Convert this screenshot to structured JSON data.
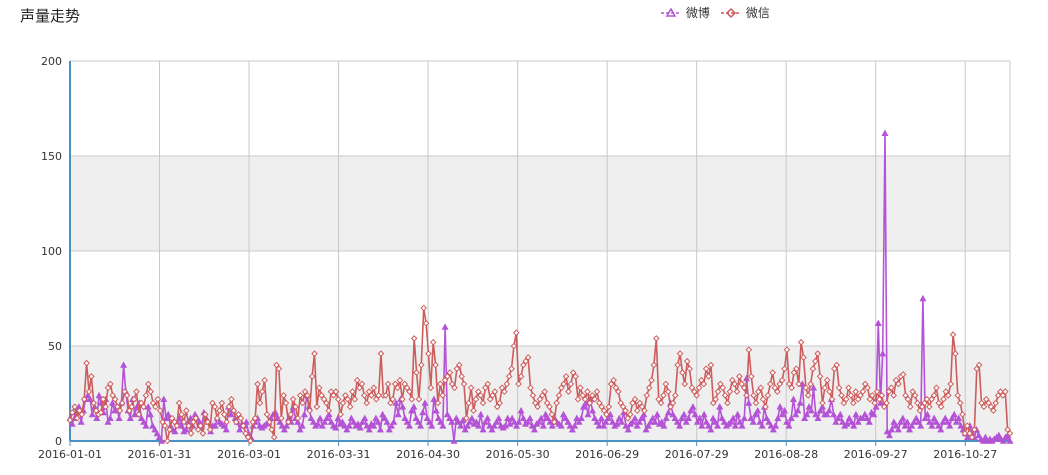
{
  "page": {
    "title": "声量走势"
  },
  "colors": {
    "weibo": "#b453d6",
    "weixin": "#cd5c5c",
    "axis": "#4a90c4",
    "band": "#efefef",
    "grid": "#c8c8c8"
  },
  "chart_data": {
    "type": "line",
    "title": "声量走势",
    "xlabel": "",
    "ylabel": "",
    "ylim": [
      0,
      200
    ],
    "yticks": [
      0,
      50,
      100,
      150,
      200
    ],
    "x_start": "2016-01-01",
    "x_end": "2016-11-11",
    "xticks": [
      "2016-01-01",
      "2016-01-31",
      "2016-03-01",
      "2016-03-31",
      "2016-04-30",
      "2016-05-30",
      "2016-06-29",
      "2016-07-29",
      "2016-08-28",
      "2016-09-27",
      "2016-10-27"
    ],
    "legend_position": "top-right",
    "grid": true,
    "series": [
      {
        "name": "微博",
        "marker": "triangle",
        "color": "#b453d6",
        "values": [
          12,
          9,
          12,
          15,
          18,
          10,
          16,
          22,
          24,
          22,
          14,
          18,
          12,
          24,
          20,
          15,
          22,
          10,
          12,
          20,
          16,
          18,
          12,
          20,
          40,
          26,
          16,
          12,
          22,
          14,
          18,
          20,
          12,
          10,
          8,
          18,
          14,
          8,
          6,
          4,
          2,
          0,
          22,
          12,
          14,
          8,
          6,
          5,
          10,
          12,
          8,
          5,
          6,
          10,
          12,
          8,
          14,
          12,
          10,
          8,
          15,
          12,
          10,
          5,
          8,
          8,
          12,
          10,
          9,
          8,
          6,
          18,
          14,
          16,
          12,
          10,
          6,
          9,
          8,
          10,
          4,
          2,
          8,
          10,
          12,
          8,
          7,
          8,
          9,
          10,
          12,
          14,
          15,
          12,
          10,
          8,
          6,
          8,
          12,
          10,
          18,
          12,
          10,
          6,
          8,
          14,
          24,
          18,
          12,
          10,
          8,
          9,
          12,
          8,
          10,
          12,
          14,
          10,
          8,
          7,
          12,
          9,
          10,
          8,
          6,
          8,
          12,
          10,
          8,
          9,
          7,
          10,
          12,
          8,
          6,
          9,
          8,
          12,
          10,
          6,
          14,
          12,
          10,
          6,
          8,
          10,
          20,
          14,
          22,
          18,
          12,
          10,
          8,
          16,
          18,
          12,
          10,
          8,
          15,
          20,
          12,
          10,
          8,
          22,
          16,
          12,
          10,
          8,
          60,
          14,
          12,
          10,
          0,
          12,
          10,
          8,
          11,
          6,
          8,
          10,
          12,
          9,
          10,
          8,
          14,
          6,
          10,
          12,
          8,
          6,
          8,
          10,
          12,
          8,
          7,
          8,
          12,
          9,
          12,
          10,
          8,
          10,
          16,
          12,
          9,
          10,
          12,
          8,
          6,
          9,
          10,
          12,
          8,
          14,
          12,
          10,
          8,
          12,
          10,
          9,
          8,
          14,
          12,
          10,
          8,
          6,
          8,
          12,
          10,
          12,
          18,
          20,
          14,
          22,
          16,
          12,
          10,
          8,
          12,
          8,
          10,
          12,
          14,
          10,
          8,
          9,
          12,
          10,
          15,
          8,
          6,
          9,
          10,
          12,
          8,
          10,
          12,
          14,
          6,
          8,
          10,
          12,
          10,
          14,
          9,
          10,
          8,
          12,
          15,
          20,
          14,
          12,
          10,
          8,
          12,
          14,
          10,
          12,
          16,
          18,
          14,
          10,
          12,
          8,
          14,
          10,
          8,
          6,
          12,
          10,
          8,
          18,
          12,
          10,
          8,
          9,
          10,
          12,
          8,
          14,
          10,
          8,
          12,
          33,
          20,
          12,
          10,
          14,
          16,
          10,
          8,
          18,
          12,
          10,
          8,
          6,
          8,
          12,
          18,
          14,
          16,
          10,
          8,
          12,
          22,
          14,
          16,
          20,
          30,
          12,
          14,
          18,
          16,
          28,
          14,
          12,
          16,
          18,
          14,
          14,
          16,
          22,
          14,
          10,
          12,
          14,
          10,
          8,
          9,
          12,
          10,
          8,
          14,
          10,
          12,
          12,
          14,
          12,
          10,
          15,
          14,
          18,
          62,
          20,
          46,
          162,
          5,
          3,
          6,
          10,
          8,
          6,
          10,
          12,
          8,
          10,
          6,
          8,
          10,
          12,
          10,
          8,
          75,
          12,
          14,
          10,
          8,
          12,
          10,
          8,
          6,
          10,
          12,
          10,
          8,
          12,
          14,
          10,
          12,
          8,
          6,
          4,
          2,
          8,
          4,
          2,
          6,
          3,
          1,
          0,
          2,
          0,
          1,
          0,
          1,
          2,
          3,
          1,
          0,
          2,
          3,
          0
        ]
      },
      {
        "name": "微信",
        "marker": "diamond",
        "color": "#cd5c5c",
        "values": [
          11,
          15,
          18,
          12,
          16,
          14,
          22,
          41,
          26,
          34,
          20,
          16,
          14,
          15,
          22,
          18,
          28,
          30,
          24,
          22,
          18,
          16,
          20,
          26,
          24,
          16,
          18,
          22,
          26,
          14,
          20,
          18,
          24,
          30,
          26,
          20,
          18,
          22,
          16,
          10,
          8,
          0,
          6,
          12,
          10,
          8,
          20,
          14,
          10,
          16,
          8,
          4,
          10,
          12,
          6,
          8,
          4,
          14,
          10,
          6,
          20,
          18,
          12,
          16,
          20,
          14,
          10,
          18,
          22,
          16,
          10,
          14,
          12,
          8,
          4,
          2,
          0,
          10,
          12,
          30,
          20,
          26,
          32,
          14,
          10,
          6,
          2,
          40,
          38,
          12,
          24,
          20,
          10,
          14,
          22,
          18,
          12,
          24,
          20,
          26,
          24,
          16,
          34,
          46,
          18,
          28,
          24,
          22,
          20,
          16,
          26,
          24,
          26,
          22,
          14,
          20,
          24,
          22,
          18,
          26,
          22,
          32,
          28,
          30,
          24,
          20,
          26,
          24,
          28,
          22,
          24,
          46,
          24,
          24,
          30,
          20,
          22,
          30,
          28,
          32,
          22,
          30,
          28,
          26,
          22,
          54,
          36,
          22,
          40,
          70,
          62,
          46,
          28,
          52,
          40,
          20,
          30,
          24,
          32,
          34,
          36,
          30,
          28,
          38,
          40,
          34,
          30,
          12,
          20,
          28,
          16,
          22,
          26,
          24,
          20,
          28,
          30,
          22,
          24,
          26,
          18,
          20,
          28,
          26,
          30,
          34,
          38,
          50,
          57,
          30,
          34,
          40,
          42,
          44,
          28,
          24,
          20,
          18,
          22,
          24,
          26,
          20,
          18,
          14,
          10,
          20,
          24,
          28,
          30,
          34,
          26,
          30,
          36,
          34,
          22,
          28,
          24,
          22,
          26,
          20,
          24,
          22,
          26,
          20,
          18,
          16,
          14,
          18,
          30,
          32,
          28,
          26,
          20,
          18,
          16,
          12,
          14,
          20,
          22,
          16,
          20,
          18,
          16,
          24,
          28,
          32,
          40,
          54,
          22,
          20,
          24,
          30,
          26,
          18,
          20,
          24,
          40,
          46,
          36,
          30,
          42,
          38,
          28,
          26,
          24,
          28,
          32,
          30,
          38,
          34,
          40,
          20,
          22,
          26,
          30,
          28,
          24,
          20,
          26,
          32,
          30,
          26,
          34,
          30,
          28,
          24,
          48,
          34,
          24,
          20,
          26,
          28,
          22,
          18,
          24,
          30,
          36,
          28,
          26,
          30,
          32,
          38,
          48,
          30,
          28,
          36,
          38,
          30,
          52,
          44,
          28,
          24,
          30,
          38,
          42,
          46,
          34,
          20,
          28,
          32,
          26,
          22,
          38,
          40,
          28,
          24,
          20,
          22,
          28,
          24,
          20,
          26,
          22,
          24,
          26,
          30,
          28,
          22,
          24,
          20,
          26,
          22,
          24,
          18,
          20,
          26,
          28,
          24,
          32,
          30,
          34,
          35,
          24,
          22,
          18,
          26,
          24,
          20,
          16,
          18,
          20,
          22,
          18,
          22,
          24,
          28,
          20,
          18,
          22,
          26,
          24,
          30,
          56,
          46,
          24,
          20,
          14,
          4,
          8,
          4,
          2,
          6,
          38,
          40,
          20,
          18,
          22,
          20,
          18,
          16,
          20,
          24,
          26,
          24,
          26,
          6,
          4
        ]
      }
    ]
  }
}
